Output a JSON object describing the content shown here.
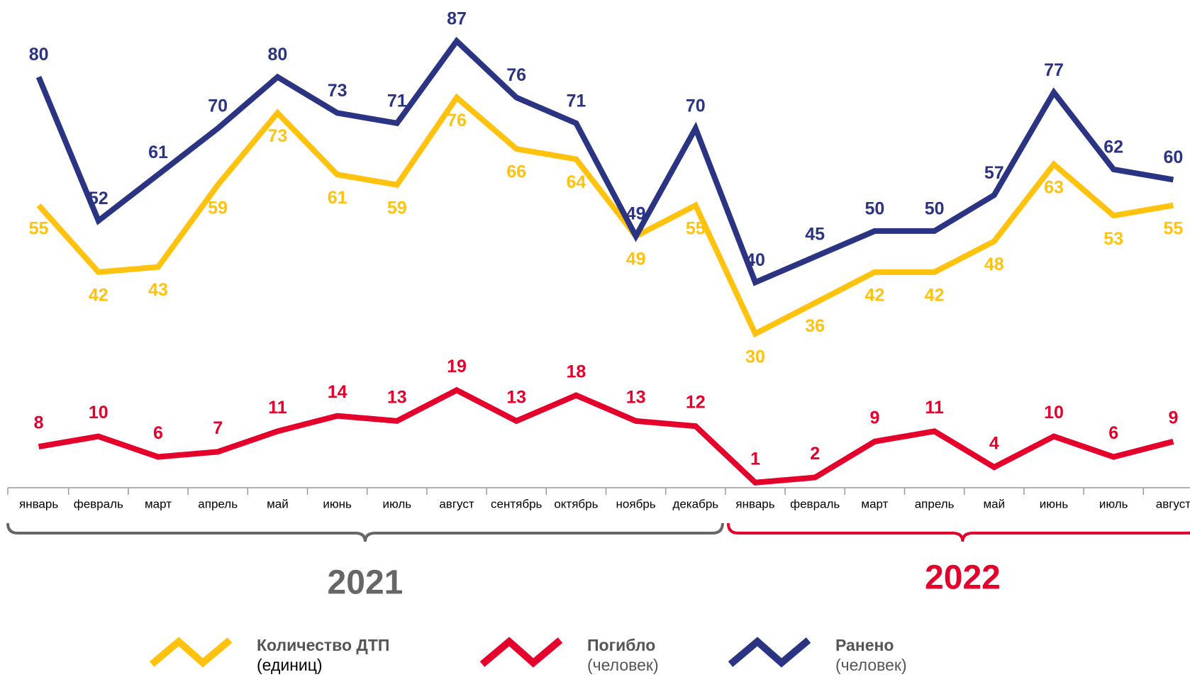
{
  "chart_data": {
    "type": "line",
    "groups": [
      {
        "label": "2021",
        "color": "#666666",
        "categories": [
          "январь",
          "февраль",
          "март",
          "апрель",
          "май",
          "июнь",
          "июль",
          "август",
          "сентябрь",
          "октябрь",
          "ноябрь",
          "декабрь"
        ]
      },
      {
        "label": "2022",
        "color": "#e4002b",
        "categories": [
          "январь",
          "февраль",
          "март",
          "апрель",
          "май",
          "июнь",
          "июль",
          "август"
        ]
      }
    ],
    "series": [
      {
        "name": "Количество ДТП",
        "unit": "(единиц)",
        "color": "#ffc20e",
        "values": [
          55,
          42,
          43,
          59,
          73,
          61,
          59,
          76,
          66,
          64,
          49,
          55,
          30,
          36,
          42,
          42,
          48,
          63,
          53,
          55
        ]
      },
      {
        "name": "Ранено",
        "unit": "(человек)",
        "color": "#2b3483",
        "values": [
          80,
          52,
          61,
          70,
          80,
          73,
          71,
          87,
          76,
          71,
          49,
          70,
          40,
          45,
          50,
          50,
          57,
          77,
          62,
          60
        ]
      },
      {
        "name": "Погибло",
        "unit": "(человек)",
        "color": "#e4002b",
        "values": [
          8,
          10,
          6,
          7,
          11,
          14,
          13,
          19,
          13,
          18,
          13,
          12,
          1,
          2,
          9,
          11,
          4,
          10,
          6,
          9
        ]
      }
    ],
    "ylim": [
      0,
      95
    ]
  }
}
